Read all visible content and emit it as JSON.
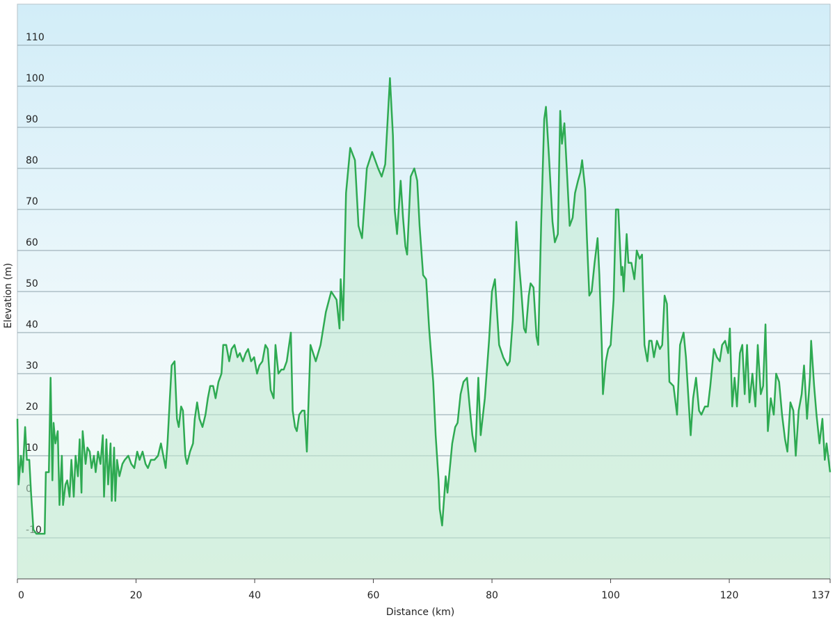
{
  "chart_data": {
    "type": "area",
    "x_label": "Distance  (km)",
    "y_label": "Elevation (m)",
    "color": "#2eaa52",
    "fill": "#bfead0",
    "grid": true,
    "xlim": [
      0,
      137
    ],
    "ylim": [
      -20,
      120
    ],
    "xticks": [
      0,
      20,
      40,
      60,
      80,
      100,
      120,
      137
    ],
    "yticks": [
      -10,
      0,
      10,
      20,
      30,
      40,
      50,
      60,
      70,
      80,
      90,
      100,
      110
    ],
    "x": [
      0,
      0.2,
      0.6,
      0.9,
      1.3,
      1.6,
      2.0,
      2.3,
      2.7,
      3.2,
      3.9,
      4.6,
      4.8,
      5.3,
      5.6,
      5.9,
      6.1,
      6.4,
      6.8,
      7.1,
      7.5,
      7.7,
      8.1,
      8.4,
      8.8,
      9.1,
      9.5,
      9.8,
      10.2,
      10.5,
      10.8,
      11.0,
      11.5,
      11.8,
      12.2,
      12.5,
      12.9,
      13.2,
      13.6,
      14.0,
      14.4,
      14.6,
      15.0,
      15.3,
      15.7,
      15.9,
      16.3,
      16.5,
      16.8,
      17.2,
      17.7,
      18.1,
      18.7,
      19.2,
      19.7,
      20.2,
      20.6,
      21.1,
      21.6,
      22.0,
      22.5,
      23.1,
      23.7,
      24.2,
      24.6,
      25.0,
      25.3,
      25.7,
      26.0,
      26.5,
      26.9,
      27.2,
      27.6,
      27.9,
      28.3,
      28.6,
      29.1,
      29.6,
      29.9,
      30.3,
      30.7,
      31.2,
      31.7,
      32.1,
      32.5,
      33.0,
      33.4,
      33.9,
      34.4,
      34.7,
      35.2,
      35.7,
      36.1,
      36.6,
      37.1,
      37.5,
      38.0,
      38.5,
      38.9,
      39.4,
      39.9,
      40.4,
      40.8,
      41.3,
      41.8,
      42.2,
      42.7,
      43.2,
      43.5,
      44.0,
      44.5,
      44.9,
      45.4,
      46.1,
      46.4,
      46.8,
      47.1,
      47.5,
      48.0,
      48.4,
      48.8,
      49.4,
      50.3,
      51.1,
      52.0,
      52.9,
      53.8,
      54.3,
      54.5,
      54.9,
      55.4,
      56.1,
      56.9,
      57.5,
      58.1,
      58.9,
      59.8,
      60.8,
      61.4,
      62.0,
      62.8,
      63.3,
      63.6,
      64.0,
      64.6,
      65.0,
      65.4,
      65.7,
      66.3,
      66.9,
      67.4,
      67.8,
      68.4,
      68.9,
      69.4,
      70.1,
      70.5,
      71.0,
      71.2,
      71.6,
      72.2,
      72.5,
      73.3,
      73.8,
      74.2,
      74.7,
      75.2,
      75.8,
      76.3,
      76.7,
      77.2,
      77.7,
      78.1,
      78.8,
      79.5,
      80.0,
      80.5,
      81.2,
      81.9,
      82.6,
      83.0,
      83.5,
      83.9,
      84.1,
      84.6,
      84.9,
      85.4,
      85.7,
      86.2,
      86.5,
      87.0,
      87.5,
      87.8,
      88.3,
      88.8,
      89.1,
      89.6,
      90.2,
      90.6,
      91.1,
      91.5,
      91.8,
      92.2,
      92.6,
      93.1,
      93.6,
      94.0,
      94.5,
      94.9,
      95.2,
      95.7,
      96.0,
      96.4,
      96.8,
      97.3,
      97.8,
      98.1,
      98.5,
      98.7,
      99.2,
      99.6,
      100.0,
      100.5,
      100.9,
      101.3,
      101.8,
      102.0,
      102.2,
      102.7,
      103.0,
      103.5,
      104.0,
      104.4,
      104.9,
      105.3,
      105.7,
      106.2,
      106.5,
      106.9,
      107.3,
      107.8,
      108.3,
      108.7,
      109.1,
      109.5,
      109.9,
      110.6,
      111.2,
      111.7,
      112.3,
      112.7,
      113.5,
      113.9,
      114.4,
      114.9,
      115.3,
      115.9,
      116.4,
      116.8,
      117.4,
      117.9,
      118.4,
      118.8,
      119.3,
      119.8,
      120.1,
      120.5,
      120.9,
      121.3,
      121.8,
      122.2,
      122.6,
      123.0,
      123.4,
      123.9,
      124.4,
      124.8,
      125.3,
      125.7,
      126.1,
      126.5,
      127.0,
      127.5,
      127.9,
      128.4,
      128.9,
      129.4,
      129.8,
      130.3,
      130.8,
      131.2,
      131.7,
      132.2,
      132.6,
      133.1,
      133.6,
      133.8,
      134.3,
      134.7,
      135.2,
      135.7,
      136.1,
      136.4,
      137
    ],
    "values": [
      19,
      3,
      10,
      6,
      17,
      9,
      9,
      1,
      -8,
      -9,
      -9,
      -9,
      6,
      6,
      29,
      4,
      18,
      13,
      16,
      -2,
      10,
      -2,
      3,
      4,
      0,
      9,
      0,
      10,
      5,
      14,
      1,
      16,
      8,
      12,
      11,
      7,
      10,
      6,
      11,
      8,
      15,
      0,
      14,
      3,
      13,
      -1,
      12,
      -1,
      9,
      5,
      8,
      9,
      10,
      8,
      7,
      11,
      9,
      11,
      8,
      7,
      9,
      9,
      10,
      13,
      10,
      7,
      13,
      24,
      32,
      33,
      19,
      17,
      22,
      21,
      10,
      8,
      11,
      13,
      19,
      23,
      19,
      17,
      20,
      24,
      27,
      27,
      24,
      28,
      30,
      37,
      37,
      33,
      36,
      37,
      34,
      35,
      33,
      35,
      36,
      33,
      34,
      30,
      32,
      33,
      37,
      36,
      26,
      24,
      37,
      30,
      31,
      31,
      33,
      40,
      21,
      17,
      16,
      20,
      21,
      21,
      11,
      37,
      33,
      37,
      45,
      50,
      48,
      41,
      53,
      43,
      74,
      85,
      82,
      66,
      63,
      80,
      84,
      80,
      78,
      81,
      102,
      88,
      70,
      64,
      77,
      68,
      61,
      59,
      78,
      80,
      77,
      66,
      54,
      53,
      41,
      28,
      15,
      4,
      -3,
      -7,
      5,
      1,
      13,
      17,
      18,
      25,
      28,
      29,
      21,
      15,
      11,
      29,
      15,
      24,
      38,
      50,
      53,
      37,
      34,
      32,
      33,
      43,
      58,
      67,
      56,
      51,
      41,
      40,
      49,
      52,
      51,
      39,
      37,
      67,
      92,
      95,
      83,
      67,
      62,
      64,
      94,
      86,
      91,
      80,
      66,
      68,
      74,
      77,
      79,
      82,
      75,
      63,
      49,
      50,
      57,
      63,
      54,
      37,
      25,
      33,
      36,
      37,
      48,
      70,
      70,
      54,
      56,
      50,
      64,
      57,
      57,
      53,
      60,
      58,
      59,
      37,
      33,
      38,
      38,
      34,
      38,
      36,
      37,
      49,
      47,
      28,
      27,
      20,
      37,
      40,
      34,
      15,
      24,
      29,
      21,
      20,
      22,
      22,
      27,
      36,
      34,
      33,
      37,
      38,
      35,
      41,
      22,
      29,
      22,
      35,
      37,
      25,
      37,
      23,
      30,
      22,
      37,
      25,
      27,
      42,
      16,
      24,
      20,
      30,
      28,
      20,
      14,
      11,
      23,
      21,
      10,
      21,
      25,
      32,
      19,
      29,
      38,
      27,
      20,
      13,
      19,
      9,
      13,
      6
    ]
  }
}
